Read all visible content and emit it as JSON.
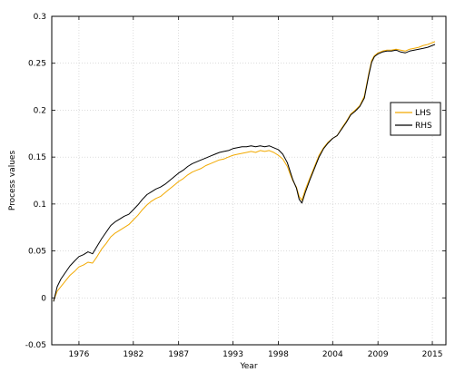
{
  "chart_data": {
    "type": "line",
    "title": "",
    "xlabel": "Year",
    "ylabel": "Process values",
    "xlim": [
      1973,
      2016.5
    ],
    "ylim": [
      -0.05,
      0.3
    ],
    "grid": true,
    "legend_position": "right",
    "x_ticks": [
      1976,
      1982,
      1987,
      1993,
      1998,
      2004,
      2009,
      2015
    ],
    "x_tick_labels": [
      "1976",
      "1982",
      "1987",
      "1993",
      "1998",
      "2004",
      "2009",
      "2015"
    ],
    "y_ticks": [
      -0.05,
      0,
      0.05,
      0.1,
      0.15,
      0.2,
      0.25,
      0.3
    ],
    "y_tick_labels": [
      "-0.05",
      "0",
      "0.05",
      "0.1",
      "0.15",
      "0.2",
      "0.25",
      "0.3"
    ],
    "series": [
      {
        "name": "LHS",
        "color": "#f2a900",
        "x": [
          1973.2,
          1973.6,
          1974,
          1974.5,
          1975,
          1975.5,
          1976,
          1976.5,
          1977,
          1977.5,
          1978,
          1978.5,
          1979,
          1979.5,
          1980,
          1980.5,
          1981,
          1981.5,
          1982,
          1982.5,
          1983,
          1983.5,
          1984,
          1984.5,
          1985,
          1985.5,
          1986,
          1986.5,
          1987,
          1987.5,
          1988,
          1988.5,
          1989,
          1989.5,
          1990,
          1990.5,
          1991,
          1991.5,
          1992,
          1992.5,
          1993,
          1993.5,
          1994,
          1994.5,
          1995,
          1995.5,
          1996,
          1996.5,
          1997,
          1997.5,
          1998,
          1998.5,
          1999,
          1999.3,
          1999.6,
          2000,
          2000.3,
          2000.6,
          2001,
          2001.5,
          2002,
          2002.5,
          2003,
          2003.5,
          2004,
          2004.5,
          2005,
          2005.5,
          2006,
          2006.5,
          2007,
          2007.5,
          2008,
          2008.3,
          2008.6,
          2009,
          2009.5,
          2010,
          2010.5,
          2011,
          2011.5,
          2012,
          2012.5,
          2013,
          2013.5,
          2014,
          2014.5,
          2015,
          2015.3
        ],
        "values": [
          -0.003,
          0.007,
          0.012,
          0.018,
          0.024,
          0.028,
          0.033,
          0.035,
          0.038,
          0.037,
          0.044,
          0.052,
          0.058,
          0.065,
          0.069,
          0.072,
          0.075,
          0.078,
          0.083,
          0.088,
          0.094,
          0.099,
          0.103,
          0.106,
          0.108,
          0.112,
          0.116,
          0.12,
          0.124,
          0.127,
          0.131,
          0.134,
          0.136,
          0.138,
          0.141,
          0.143,
          0.145,
          0.147,
          0.148,
          0.15,
          0.152,
          0.153,
          0.154,
          0.155,
          0.156,
          0.155,
          0.157,
          0.156,
          0.157,
          0.155,
          0.152,
          0.148,
          0.14,
          0.132,
          0.125,
          0.118,
          0.108,
          0.104,
          0.116,
          0.128,
          0.14,
          0.152,
          0.16,
          0.166,
          0.17,
          0.173,
          0.181,
          0.188,
          0.196,
          0.2,
          0.205,
          0.215,
          0.24,
          0.253,
          0.258,
          0.261,
          0.263,
          0.264,
          0.264,
          0.265,
          0.264,
          0.263,
          0.265,
          0.266,
          0.267,
          0.269,
          0.27,
          0.272,
          0.273
        ]
      },
      {
        "name": "RHS",
        "color": "#000000",
        "x": [
          1973.2,
          1973.6,
          1974,
          1974.5,
          1975,
          1975.5,
          1976,
          1976.5,
          1977,
          1977.5,
          1978,
          1978.5,
          1979,
          1979.5,
          1980,
          1980.5,
          1981,
          1981.5,
          1982,
          1982.5,
          1983,
          1983.5,
          1984,
          1984.5,
          1985,
          1985.5,
          1986,
          1986.5,
          1987,
          1987.5,
          1988,
          1988.5,
          1989,
          1989.5,
          1990,
          1990.5,
          1991,
          1991.5,
          1992,
          1992.5,
          1993,
          1993.5,
          1994,
          1994.5,
          1995,
          1995.5,
          1996,
          1996.5,
          1997,
          1997.5,
          1998,
          1998.5,
          1999,
          1999.3,
          1999.6,
          2000,
          2000.3,
          2000.6,
          2001,
          2001.5,
          2002,
          2002.5,
          2003,
          2003.5,
          2004,
          2004.5,
          2005,
          2005.5,
          2006,
          2006.5,
          2007,
          2007.5,
          2008,
          2008.3,
          2008.6,
          2009,
          2009.5,
          2010,
          2010.5,
          2011,
          2011.5,
          2012,
          2012.5,
          2013,
          2013.5,
          2014,
          2014.5,
          2015,
          2015.3
        ],
        "values": [
          -0.004,
          0.012,
          0.02,
          0.027,
          0.034,
          0.039,
          0.044,
          0.046,
          0.049,
          0.047,
          0.055,
          0.063,
          0.07,
          0.077,
          0.081,
          0.084,
          0.087,
          0.089,
          0.094,
          0.099,
          0.105,
          0.11,
          0.113,
          0.116,
          0.118,
          0.121,
          0.125,
          0.129,
          0.133,
          0.136,
          0.14,
          0.143,
          0.145,
          0.147,
          0.149,
          0.151,
          0.153,
          0.155,
          0.156,
          0.157,
          0.159,
          0.16,
          0.161,
          0.161,
          0.162,
          0.161,
          0.162,
          0.161,
          0.162,
          0.16,
          0.158,
          0.153,
          0.144,
          0.135,
          0.126,
          0.117,
          0.105,
          0.101,
          0.113,
          0.126,
          0.138,
          0.15,
          0.159,
          0.165,
          0.17,
          0.173,
          0.18,
          0.187,
          0.195,
          0.199,
          0.204,
          0.213,
          0.238,
          0.251,
          0.257,
          0.26,
          0.262,
          0.263,
          0.263,
          0.264,
          0.262,
          0.261,
          0.263,
          0.264,
          0.265,
          0.266,
          0.267,
          0.269,
          0.27
        ]
      }
    ]
  }
}
